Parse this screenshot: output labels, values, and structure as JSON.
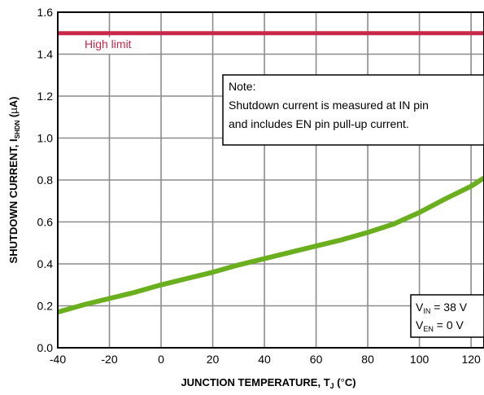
{
  "colors": {
    "curve": "#6aaf1e",
    "limit": "#c8284a",
    "grid": "#8c8c8c",
    "axis": "#000000",
    "background": "#ffffff"
  },
  "axes": {
    "x_label_parts": [
      "JUNCTION TEMPERATURE, T",
      "J",
      " (",
      "°",
      "C)"
    ],
    "y_label_parts": [
      "SHUTDOWN CURRENT, I",
      "SHDN",
      "  (",
      "µ",
      "A)"
    ]
  },
  "note": {
    "lines": [
      "Note:",
      "Shutdown current is measured at IN pin",
      "and includes EN pin pull-up current."
    ]
  },
  "conditions": [
    {
      "sym": "V",
      "sub": "IN",
      "rest": " = 38 V"
    },
    {
      "sym": "V",
      "sub": "EN",
      "rest": " = 0 V"
    }
  ],
  "chart_data": {
    "type": "line",
    "title": "",
    "xlabel": "JUNCTION TEMPERATURE, TJ (°C)",
    "ylabel": "SHUTDOWN CURRENT, ISHDN (µA)",
    "xlim": [
      -40,
      125
    ],
    "ylim": [
      0.0,
      1.6
    ],
    "x_ticks": [
      -40,
      -20,
      0,
      20,
      40,
      60,
      80,
      100,
      120
    ],
    "x_tick_labels": [
      "-40",
      "-20",
      "0",
      "20",
      "40",
      "60",
      "80",
      "100",
      "120"
    ],
    "y_ticks": [
      0.0,
      0.2,
      0.4,
      0.6,
      0.8,
      1.0,
      1.2,
      1.4,
      1.6
    ],
    "y_tick_labels": [
      "0.0",
      "0.2",
      "0.4",
      "0.6",
      "0.8",
      "1.0",
      "1.2",
      "1.4",
      "1.6"
    ],
    "grid": true,
    "series": [
      {
        "name": "",
        "x": [
          -40,
          -30,
          -20,
          -10,
          0,
          10,
          20,
          30,
          40,
          50,
          60,
          70,
          80,
          90,
          100,
          110,
          120,
          125
        ],
        "y": [
          0.17,
          0.205,
          0.235,
          0.265,
          0.3,
          0.33,
          0.36,
          0.395,
          0.425,
          0.455,
          0.485,
          0.515,
          0.55,
          0.59,
          0.645,
          0.71,
          0.77,
          0.81
        ]
      }
    ],
    "reference_lines": [
      {
        "label": "High limit",
        "y": 1.5
      }
    ]
  }
}
